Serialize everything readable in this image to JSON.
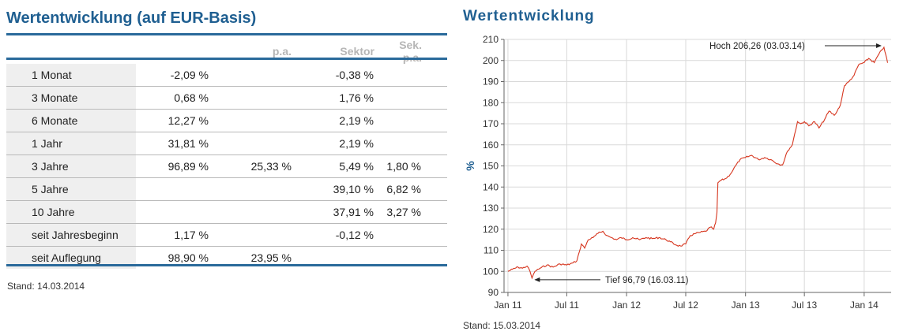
{
  "table": {
    "title": "Wertentwicklung (auf EUR-Basis)",
    "headers": [
      "",
      "",
      "p.a.",
      "Sektor",
      "Sek. p.a."
    ],
    "rows": [
      {
        "label": "1 Monat",
        "value": "-2,09 %",
        "pa": "",
        "sektor": "-0,38 %",
        "sek_pa": ""
      },
      {
        "label": "3 Monate",
        "value": "0,68 %",
        "pa": "",
        "sektor": "1,76 %",
        "sek_pa": ""
      },
      {
        "label": "6 Monate",
        "value": "12,27 %",
        "pa": "",
        "sektor": "2,19 %",
        "sek_pa": ""
      },
      {
        "label": "1 Jahr",
        "value": "31,81 %",
        "pa": "",
        "sektor": "2,19 %",
        "sek_pa": ""
      },
      {
        "label": "3 Jahre",
        "value": "96,89 %",
        "pa": "25,33 %",
        "sektor": "5,49 %",
        "sek_pa": "1,80 %"
      },
      {
        "label": "5 Jahre",
        "value": "",
        "pa": "",
        "sektor": "39,10 %",
        "sek_pa": "6,82 %"
      },
      {
        "label": "10 Jahre",
        "value": "",
        "pa": "",
        "sektor": "37,91 %",
        "sek_pa": "3,27 %"
      },
      {
        "label": "seit Jahresbeginn",
        "value": "1,17 %",
        "pa": "",
        "sektor": "-0,12 %",
        "sek_pa": ""
      },
      {
        "label": "seit Auflegung",
        "value": "98,90 %",
        "pa": "23,95 %",
        "sektor": "",
        "sek_pa": ""
      }
    ],
    "stand": "Stand: 14.03.2014"
  },
  "chart_panel": {
    "title": "Wertentwicklung",
    "stand": "Stand: 15.03.2014"
  },
  "colors": {
    "accent": "#1f5f91",
    "line": "#d6361f",
    "grid": "#d9d9d9",
    "label_bg": "#efefef"
  },
  "chart_data": {
    "type": "line",
    "title": "Wertentwicklung",
    "ylabel": "%",
    "xlabel": "",
    "ylim": [
      90,
      210
    ],
    "yticks": [
      90,
      100,
      110,
      120,
      130,
      140,
      150,
      160,
      170,
      180,
      190,
      200,
      210
    ],
    "x_domain": [
      "2010-12-20",
      "2014-03-25"
    ],
    "xticks": [
      {
        "date": "2011-01-01",
        "label": "Jan 11"
      },
      {
        "date": "2011-07-01",
        "label": "Jul 11"
      },
      {
        "date": "2012-01-01",
        "label": "Jan 12"
      },
      {
        "date": "2012-07-01",
        "label": "Jul 12"
      },
      {
        "date": "2013-01-01",
        "label": "Jan 13"
      },
      {
        "date": "2013-07-01",
        "label": "Jul 13"
      },
      {
        "date": "2014-01-01",
        "label": "Jan 14"
      }
    ],
    "grid": true,
    "series": [
      {
        "points": [
          [
            "2011-01-01",
            100
          ],
          [
            "2011-01-15",
            101
          ],
          [
            "2011-02-01",
            102
          ],
          [
            "2011-02-15",
            101.5
          ],
          [
            "2011-03-01",
            102.5
          ],
          [
            "2011-03-10",
            100
          ],
          [
            "2011-03-16",
            96.79
          ],
          [
            "2011-03-25",
            100
          ],
          [
            "2011-04-10",
            101.5
          ],
          [
            "2011-05-01",
            103
          ],
          [
            "2011-05-20",
            102
          ],
          [
            "2011-06-10",
            103.5
          ],
          [
            "2011-07-01",
            103
          ],
          [
            "2011-07-20",
            104
          ],
          [
            "2011-08-01",
            105
          ],
          [
            "2011-08-10",
            110
          ],
          [
            "2011-08-15",
            113
          ],
          [
            "2011-08-25",
            111
          ],
          [
            "2011-09-05",
            115
          ],
          [
            "2011-09-20",
            116
          ],
          [
            "2011-10-05",
            118
          ],
          [
            "2011-10-20",
            119
          ],
          [
            "2011-11-01",
            117
          ],
          [
            "2011-11-15",
            116
          ],
          [
            "2011-12-01",
            115
          ],
          [
            "2011-12-15",
            116
          ],
          [
            "2012-01-01",
            115
          ],
          [
            "2012-01-20",
            116
          ],
          [
            "2012-02-10",
            115
          ],
          [
            "2012-03-01",
            116
          ],
          [
            "2012-03-20",
            115.5
          ],
          [
            "2012-04-10",
            116
          ],
          [
            "2012-05-01",
            115
          ],
          [
            "2012-05-15",
            114
          ],
          [
            "2012-06-01",
            112.5
          ],
          [
            "2012-06-15",
            112
          ],
          [
            "2012-07-01",
            113
          ],
          [
            "2012-07-15",
            117
          ],
          [
            "2012-08-01",
            118
          ],
          [
            "2012-08-15",
            118.5
          ],
          [
            "2012-09-01",
            119
          ],
          [
            "2012-09-15",
            121
          ],
          [
            "2012-09-25",
            120
          ],
          [
            "2012-10-01",
            123
          ],
          [
            "2012-10-05",
            128
          ],
          [
            "2012-10-08",
            142
          ],
          [
            "2012-10-15",
            143
          ],
          [
            "2012-11-01",
            144
          ],
          [
            "2012-11-15",
            146
          ],
          [
            "2012-12-01",
            150
          ],
          [
            "2012-12-15",
            153
          ],
          [
            "2013-01-01",
            154
          ],
          [
            "2013-01-20",
            155
          ],
          [
            "2013-02-10",
            153
          ],
          [
            "2013-03-01",
            154
          ],
          [
            "2013-03-20",
            153
          ],
          [
            "2013-04-10",
            151
          ],
          [
            "2013-04-25",
            150.5
          ],
          [
            "2013-05-10",
            157
          ],
          [
            "2013-05-25",
            160
          ],
          [
            "2013-06-01",
            165
          ],
          [
            "2013-06-10",
            171
          ],
          [
            "2013-06-20",
            170
          ],
          [
            "2013-07-01",
            171
          ],
          [
            "2013-07-15",
            169
          ],
          [
            "2013-08-01",
            171
          ],
          [
            "2013-08-15",
            168
          ],
          [
            "2013-09-01",
            172
          ],
          [
            "2013-09-15",
            176
          ],
          [
            "2013-10-01",
            174
          ],
          [
            "2013-10-10",
            176
          ],
          [
            "2013-10-20",
            179
          ],
          [
            "2013-11-01",
            188
          ],
          [
            "2013-11-15",
            190
          ],
          [
            "2013-12-01",
            193
          ],
          [
            "2013-12-15",
            198
          ],
          [
            "2014-01-01",
            199
          ],
          [
            "2014-01-15",
            201
          ],
          [
            "2014-02-01",
            199
          ],
          [
            "2014-02-15",
            203
          ],
          [
            "2014-03-03",
            206.26
          ],
          [
            "2014-03-08",
            203
          ],
          [
            "2014-03-14",
            198.9
          ]
        ]
      }
    ],
    "annotations": [
      {
        "text": "Hoch 206,26 (03.03.14)",
        "date": "2014-03-03",
        "value": 206.26
      },
      {
        "text": "Tief 96,79 (16.03.11)",
        "date": "2011-03-16",
        "value": 96.79
      }
    ]
  }
}
